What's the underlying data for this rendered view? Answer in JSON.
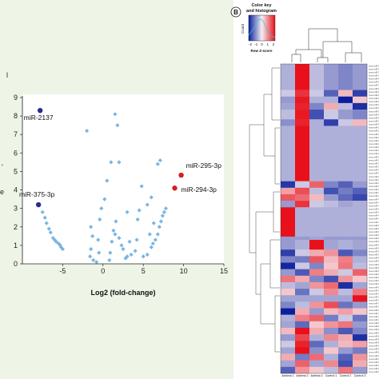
{
  "panel_b_label": "B",
  "chart_data": [
    {
      "type": "scatter",
      "title": "",
      "xlabel": "Log2 (fold-change)",
      "ylabel": "",
      "xlim": [
        -10,
        15
      ],
      "ylim": [
        0,
        9
      ],
      "x_ticks": [
        "-5",
        "0",
        "5",
        "10",
        "15"
      ],
      "y_ticks": [
        "0",
        "1",
        "2",
        "3",
        "4",
        "5",
        "6",
        "7",
        "8",
        "9"
      ],
      "grid": false,
      "colors": {
        "default": "#7ab6e2",
        "down": "#2a2a8c",
        "up": "#d42020"
      },
      "highlighted": [
        {
          "label": "miR-2137",
          "x": -7.8,
          "y": 8.3,
          "color": "down"
        },
        {
          "label": "miR-375-3p",
          "x": -8.0,
          "y": 3.2,
          "color": "down"
        },
        {
          "label": "miR-295-3p",
          "x": 9.7,
          "y": 4.8,
          "color": "up"
        },
        {
          "label": "miR-294-3p",
          "x": 8.9,
          "y": 4.1,
          "color": "up"
        }
      ],
      "points": [
        [
          -7.5,
          2.8
        ],
        [
          -7.2,
          2.5
        ],
        [
          -7.0,
          2.2
        ],
        [
          -6.7,
          1.9
        ],
        [
          -6.5,
          1.7
        ],
        [
          -6.2,
          1.4
        ],
        [
          -6.0,
          1.3
        ],
        [
          -5.8,
          1.2
        ],
        [
          -5.5,
          1.1
        ],
        [
          -5.3,
          1.0
        ],
        [
          -5.2,
          0.9
        ],
        [
          -5.0,
          0.8
        ],
        [
          -2.0,
          7.2
        ],
        [
          -1.5,
          2.0
        ],
        [
          -1.3,
          1.5
        ],
        [
          -1.5,
          0.8
        ],
        [
          -1.6,
          0.4
        ],
        [
          -1.2,
          0.2
        ],
        [
          -0.8,
          0.1
        ],
        [
          -0.5,
          0.6
        ],
        [
          -0.6,
          1.3
        ],
        [
          -0.4,
          2.4
        ],
        [
          -0.2,
          3.0
        ],
        [
          0.2,
          3.5
        ],
        [
          0.5,
          4.5
        ],
        [
          1.0,
          5.5
        ],
        [
          1.5,
          8.1
        ],
        [
          1.8,
          7.5
        ],
        [
          2.0,
          5.5
        ],
        [
          1.6,
          2.3
        ],
        [
          1.3,
          1.8
        ],
        [
          1.1,
          1.2
        ],
        [
          0.9,
          0.6
        ],
        [
          0.8,
          0.2
        ],
        [
          1.5,
          1.6
        ],
        [
          2.0,
          1.4
        ],
        [
          2.3,
          1.0
        ],
        [
          2.5,
          0.8
        ],
        [
          2.8,
          0.3
        ],
        [
          3.0,
          0.4
        ],
        [
          3.5,
          0.5
        ],
        [
          4.0,
          0.7
        ],
        [
          4.3,
          2.4
        ],
        [
          4.5,
          2.9
        ],
        [
          4.2,
          1.3
        ],
        [
          5.0,
          0.4
        ],
        [
          5.5,
          0.5
        ],
        [
          6.0,
          0.9
        ],
        [
          6.2,
          1.1
        ],
        [
          6.5,
          1.3
        ],
        [
          6.8,
          1.6
        ],
        [
          7.0,
          2.0
        ],
        [
          7.2,
          2.3
        ],
        [
          7.4,
          2.6
        ],
        [
          7.6,
          2.8
        ],
        [
          7.8,
          3.0
        ],
        [
          6.8,
          5.4
        ],
        [
          7.1,
          5.6
        ],
        [
          6.0,
          3.6
        ],
        [
          5.5,
          3.2
        ],
        [
          4.8,
          4.2
        ],
        [
          3.0,
          2.8
        ],
        [
          3.3,
          1.2
        ],
        [
          5.8,
          1.6
        ],
        [
          6.3,
          2.2
        ]
      ]
    },
    {
      "type": "heatmap",
      "title": "",
      "legend_title": "Color key\nand histogram",
      "legend_ylabel": "Count",
      "legend_xlabel": "Row Z-score",
      "legend_ticks": [
        "-2",
        "-1",
        "0",
        "1",
        "2"
      ],
      "color_scale": {
        "low": "#0b1f9e",
        "mid": "#f5eef2",
        "high": "#e8111b"
      },
      "columns": [
        "Asthma 1",
        "Asthma 2",
        "Asthma 3",
        "Control 1",
        "Control 2",
        "Control 3"
      ],
      "n_rows": 95,
      "blocks": [
        {
          "rows": [
            0,
            8
          ],
          "values": [
            -0.4,
            2,
            -0.3,
            -0.6,
            -0.8,
            -0.6
          ]
        },
        {
          "rows": [
            8,
            10
          ],
          "values": [
            -0.2,
            1.6,
            -0.2,
            -1.2,
            0.3,
            -1.6
          ]
        },
        {
          "rows": [
            10,
            12
          ],
          "values": [
            -0.6,
            1.9,
            -0.4,
            -0.4,
            -2,
            0.2
          ]
        },
        {
          "rows": [
            12,
            14
          ],
          "values": [
            -0.5,
            1.8,
            -0.8,
            0.4,
            -0.3,
            -1.8
          ]
        },
        {
          "rows": [
            14,
            17
          ],
          "values": [
            -0.3,
            1.9,
            -1.4,
            -0.2,
            -0.6,
            -0.8
          ]
        },
        {
          "rows": [
            17,
            19
          ],
          "values": [
            -0.7,
            1.8,
            -0.4,
            -1.6,
            -0.2,
            0.3
          ]
        },
        {
          "rows": [
            19,
            36
          ],
          "values": [
            -0.4,
            2,
            -0.4,
            -0.4,
            -0.4,
            -0.4
          ]
        },
        {
          "rows": [
            36,
            38
          ],
          "values": [
            -1.7,
            -0.2,
            1.1,
            -0.8,
            -1.2,
            -0.6
          ]
        },
        {
          "rows": [
            38,
            40
          ],
          "values": [
            0.5,
            1.3,
            -0.3,
            -1.4,
            -0.9,
            -1.2
          ]
        },
        {
          "rows": [
            40,
            42
          ],
          "values": [
            1.2,
            1.0,
            0.3,
            -0.6,
            -1.1,
            -1.5
          ]
        },
        {
          "rows": [
            42,
            44
          ],
          "values": [
            -0.6,
            1.6,
            -0.2,
            -0.3,
            -0.5,
            -0.4
          ]
        },
        {
          "rows": [
            44,
            53
          ],
          "values": [
            2,
            -0.4,
            -0.4,
            -0.4,
            -0.4,
            -0.4
          ]
        },
        {
          "rows": [
            53,
            54
          ],
          "values": [
            -0.6,
            -0.6,
            -0.5,
            -0.6,
            -0.6,
            -0.6
          ]
        },
        {
          "rows": [
            54,
            57
          ],
          "values": [
            -0.6,
            -0.4,
            2,
            -0.5,
            -0.4,
            -0.5
          ]
        },
        {
          "rows": [
            57,
            59
          ],
          "values": [
            -1.6,
            -0.2,
            0.4,
            0.6,
            -1.3,
            -0.8
          ]
        },
        {
          "rows": [
            59,
            61
          ],
          "values": [
            -0.8,
            -0.9,
            1.2,
            0.3,
            0.8,
            -0.4
          ]
        },
        {
          "rows": [
            61,
            63
          ],
          "values": [
            -1.9,
            -0.2,
            -0.8,
            0.2,
            0.9,
            -0.3
          ]
        },
        {
          "rows": [
            63,
            65
          ],
          "values": [
            -0.6,
            -1.3,
            0.8,
            0.4,
            -0.2,
            1.1
          ]
        },
        {
          "rows": [
            65,
            67
          ],
          "values": [
            0.9,
            0.4,
            -0.8,
            -1.4,
            0.6,
            0.2
          ]
        },
        {
          "rows": [
            67,
            69
          ],
          "values": [
            -0.3,
            -0.5,
            0.6,
            1.0,
            -1.8,
            -0.5
          ]
        },
        {
          "rows": [
            69,
            71
          ],
          "values": [
            0.2,
            -1.0,
            -0.2,
            0.7,
            -0.3,
            0.9
          ]
        },
        {
          "rows": [
            71,
            73
          ],
          "values": [
            -0.5,
            -0.5,
            -0.5,
            -0.5,
            -0.5,
            2
          ]
        },
        {
          "rows": [
            73,
            75
          ],
          "values": [
            -0.8,
            -0.3,
            0.6,
            1.3,
            -1.0,
            -0.6
          ]
        },
        {
          "rows": [
            75,
            77
          ],
          "values": [
            -2,
            0.4,
            -0.6,
            0.3,
            0.5,
            0.2
          ]
        },
        {
          "rows": [
            77,
            79
          ],
          "values": [
            -0.4,
            0.8,
            1.1,
            -0.9,
            -0.2,
            -1.0
          ]
        },
        {
          "rows": [
            79,
            81
          ],
          "values": [
            -0.5,
            -1.1,
            0.2,
            0.6,
            0.9,
            -0.6
          ]
        },
        {
          "rows": [
            81,
            83
          ],
          "values": [
            0.3,
            2,
            0.4,
            -0.7,
            -1.3,
            -0.8
          ]
        },
        {
          "rows": [
            83,
            85
          ],
          "values": [
            -0.6,
            1.4,
            -0.4,
            0.7,
            0.4,
            -1.8
          ]
        },
        {
          "rows": [
            85,
            87
          ],
          "values": [
            -0.2,
            1.8,
            -1.1,
            -0.4,
            0.3,
            0.5
          ]
        },
        {
          "rows": [
            87,
            89
          ],
          "values": [
            -0.5,
            2,
            -0.7,
            0.2,
            -0.6,
            -0.9
          ]
        },
        {
          "rows": [
            89,
            91
          ],
          "values": [
            0.4,
            -0.9,
            1.0,
            -0.4,
            -1.2,
            0.6
          ]
        },
        {
          "rows": [
            91,
            93
          ],
          "values": [
            -0.5,
            1.1,
            -0.5,
            0.7,
            -1.4,
            0.4
          ]
        },
        {
          "rows": [
            93,
            95
          ],
          "values": [
            -1.2,
            0.6,
            0.2,
            -0.3,
            0.9,
            -0.6
          ]
        }
      ]
    }
  ]
}
